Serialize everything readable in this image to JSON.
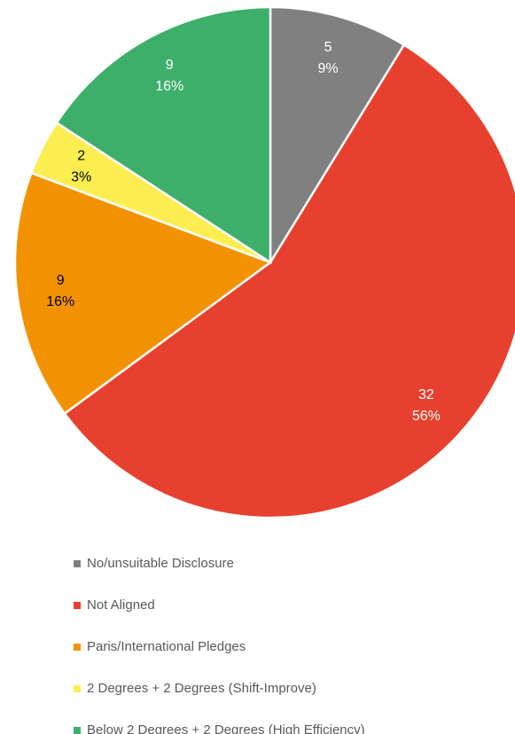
{
  "chart_data": {
    "type": "pie",
    "categories": [
      "No/unsuitable Disclosure",
      "Not Aligned",
      "Paris/International Pledges",
      "2 Degrees + 2 Degrees (Shift-Improve)",
      "Below 2 Degrees + 2 Degrees (High Efficiency)"
    ],
    "values": [
      5,
      32,
      9,
      2,
      9
    ],
    "percent_labels": [
      "9%",
      "56%",
      "16%",
      "3%",
      "16%"
    ],
    "colors": [
      "#808080",
      "#e8402e",
      "#f39200",
      "#fcee50",
      "#3daf6a"
    ],
    "label_colors": [
      "#ffffff",
      "#ffffff",
      "#000000",
      "#000000",
      "#ffffff"
    ],
    "legend": "bottom"
  }
}
